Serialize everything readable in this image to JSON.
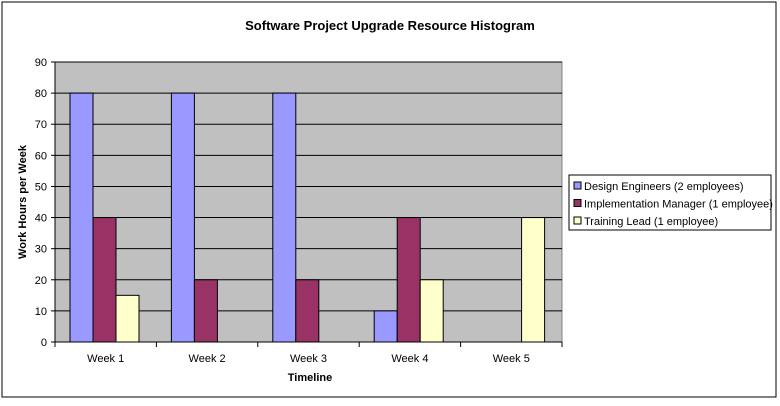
{
  "chart_data": {
    "type": "bar",
    "title": "Software Project Upgrade Resource Histogram",
    "xlabel": "Timeline",
    "ylabel": "Work Hours per Week",
    "ylim": [
      0,
      90
    ],
    "yticks": [
      0,
      10,
      20,
      30,
      40,
      50,
      60,
      70,
      80,
      90
    ],
    "grid": true,
    "legend_position": "right",
    "categories": [
      "Week 1",
      "Week 2",
      "Week 3",
      "Week 4",
      "Week 5"
    ],
    "series": [
      {
        "name": "Design Engineers (2 employees)",
        "color": "#9999FF",
        "values": [
          80,
          80,
          80,
          10,
          0
        ]
      },
      {
        "name": "Implementation Manager (1 employee)",
        "color": "#993366",
        "values": [
          40,
          20,
          20,
          40,
          0
        ]
      },
      {
        "name": "Training Lead (1 employee)",
        "color": "#FFFFCC",
        "values": [
          15,
          0,
          0,
          20,
          40
        ]
      }
    ],
    "plot_background": "#C0C0C0"
  }
}
